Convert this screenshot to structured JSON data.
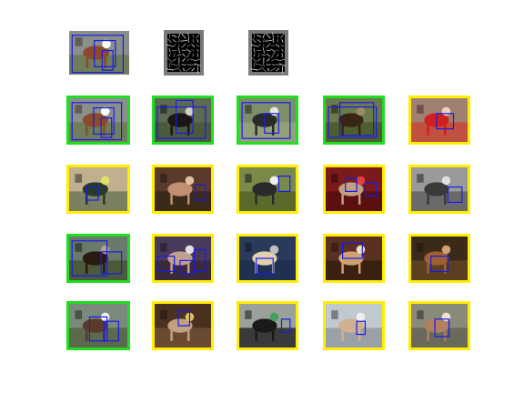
{
  "figure": {
    "background": "#ffffff",
    "colors": {
      "frame_green": "#22dd22",
      "frame_yellow": "#ffee00",
      "box_blue": "#1a1aee",
      "hog_bg": "#7a7a7a",
      "hog_inner": "#000000",
      "hog_stroke": "#ffffff"
    },
    "top_row": [
      {
        "kind": "photo",
        "subject": "horse-and-rider",
        "name": "query-image"
      },
      {
        "kind": "hog",
        "subject": "hog-template",
        "name": "hog-template-root"
      },
      {
        "kind": "hog",
        "subject": "hog-template",
        "name": "hog-template-parts"
      }
    ],
    "detections": [
      {
        "row": 1,
        "col": 1,
        "frame": "green",
        "subject": "horse-and-rider"
      },
      {
        "row": 1,
        "col": 2,
        "frame": "green",
        "subject": "dark-horse-rider"
      },
      {
        "row": 1,
        "col": 3,
        "frame": "green",
        "subject": "horse-arena"
      },
      {
        "row": 1,
        "col": 4,
        "frame": "green",
        "subject": "horse-field"
      },
      {
        "row": 1,
        "col": 5,
        "frame": "yellow",
        "subject": "person-red"
      },
      {
        "row": 2,
        "col": 1,
        "frame": "yellow",
        "subject": "cyclist"
      },
      {
        "row": 2,
        "col": 2,
        "frame": "yellow",
        "subject": "two-people"
      },
      {
        "row": 2,
        "col": 3,
        "frame": "yellow",
        "subject": "dog-grass"
      },
      {
        "row": 2,
        "col": 4,
        "frame": "yellow",
        "subject": "group-red"
      },
      {
        "row": 2,
        "col": 5,
        "frame": "yellow",
        "subject": "people-bw"
      },
      {
        "row": 3,
        "col": 1,
        "frame": "green",
        "subject": "horse-cart"
      },
      {
        "row": 3,
        "col": 2,
        "frame": "yellow",
        "subject": "person-dog"
      },
      {
        "row": 3,
        "col": 3,
        "frame": "yellow",
        "subject": "person-sitting-dog"
      },
      {
        "row": 3,
        "col": 4,
        "frame": "yellow",
        "subject": "woman-portrait"
      },
      {
        "row": 3,
        "col": 5,
        "frame": "yellow",
        "subject": "brown-dog"
      },
      {
        "row": 4,
        "col": 1,
        "frame": "green",
        "subject": "horse-carriage"
      },
      {
        "row": 4,
        "col": 2,
        "frame": "yellow",
        "subject": "indoor-people"
      },
      {
        "row": 4,
        "col": 3,
        "frame": "yellow",
        "subject": "trash-bin"
      },
      {
        "row": 4,
        "col": 4,
        "frame": "yellow",
        "subject": "child-window"
      },
      {
        "row": 4,
        "col": 5,
        "frame": "yellow",
        "subject": "dog-road"
      }
    ]
  }
}
